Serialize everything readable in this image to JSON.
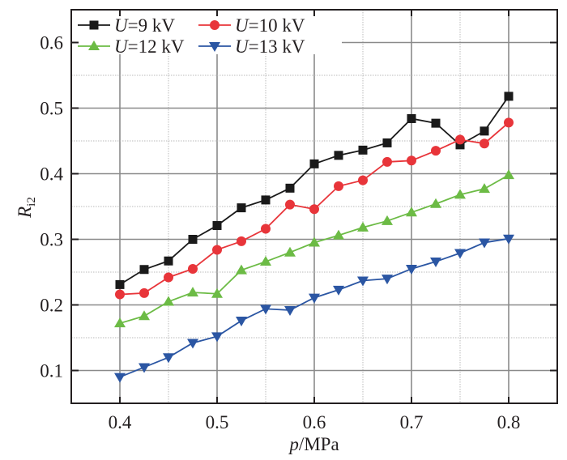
{
  "chart_data": {
    "type": "line",
    "title": "",
    "xlabel": {
      "italic": "p",
      "rest": "/MPa"
    },
    "ylabel": {
      "main": "R",
      "sub": "i2"
    },
    "xlim": [
      0.35,
      0.85
    ],
    "ylim": [
      0.05,
      0.65
    ],
    "x_ticks": [
      0.4,
      0.5,
      0.6,
      0.7,
      0.8
    ],
    "x_tick_labels": [
      "0.4",
      "0.5",
      "0.6",
      "0.7",
      "0.8"
    ],
    "y_ticks": [
      0.1,
      0.2,
      0.3,
      0.4,
      0.5,
      0.6
    ],
    "y_tick_labels": [
      "0.1",
      "0.2",
      "0.3",
      "0.4",
      "0.5",
      "0.6"
    ],
    "grid": {
      "major": true,
      "minor": true,
      "minor_step": 0.05
    },
    "legend": {
      "placement": "top-left",
      "columns": 2
    },
    "x": [
      0.4,
      0.425,
      0.45,
      0.475,
      0.5,
      0.525,
      0.55,
      0.575,
      0.6,
      0.625,
      0.65,
      0.675,
      0.7,
      0.725,
      0.75,
      0.775,
      0.8
    ],
    "series": [
      {
        "name": "U=9 kV",
        "label_italic": "U",
        "label_rest": "=9 kV",
        "color": "#1a1a1a",
        "marker": "square",
        "values": [
          0.231,
          0.254,
          0.267,
          0.3,
          0.321,
          0.348,
          0.36,
          0.378,
          0.415,
          0.428,
          0.436,
          0.447,
          0.484,
          0.477,
          0.444,
          0.465,
          0.518
        ]
      },
      {
        "name": "U=10 kV",
        "label_italic": "U",
        "label_rest": "=10 kV",
        "color": "#e8353a",
        "marker": "circle",
        "values": [
          0.216,
          0.218,
          0.242,
          0.255,
          0.284,
          0.297,
          0.316,
          0.353,
          0.346,
          0.381,
          0.39,
          0.418,
          0.42,
          0.435,
          0.452,
          0.446,
          0.478
        ]
      },
      {
        "name": "U=12 kV",
        "label_italic": "U",
        "label_rest": "=12 kV",
        "color": "#6cbb45",
        "marker": "triangle-up",
        "values": [
          0.172,
          0.183,
          0.205,
          0.219,
          0.217,
          0.253,
          0.266,
          0.28,
          0.295,
          0.306,
          0.318,
          0.328,
          0.341,
          0.354,
          0.368,
          0.377,
          0.398
        ]
      },
      {
        "name": "U=13 kV",
        "label_italic": "U",
        "label_rest": "=13 kV",
        "color": "#2b56a3",
        "marker": "triangle-down",
        "values": [
          0.09,
          0.105,
          0.12,
          0.142,
          0.152,
          0.176,
          0.194,
          0.192,
          0.211,
          0.223,
          0.237,
          0.24,
          0.255,
          0.266,
          0.279,
          0.295,
          0.301
        ]
      }
    ]
  }
}
